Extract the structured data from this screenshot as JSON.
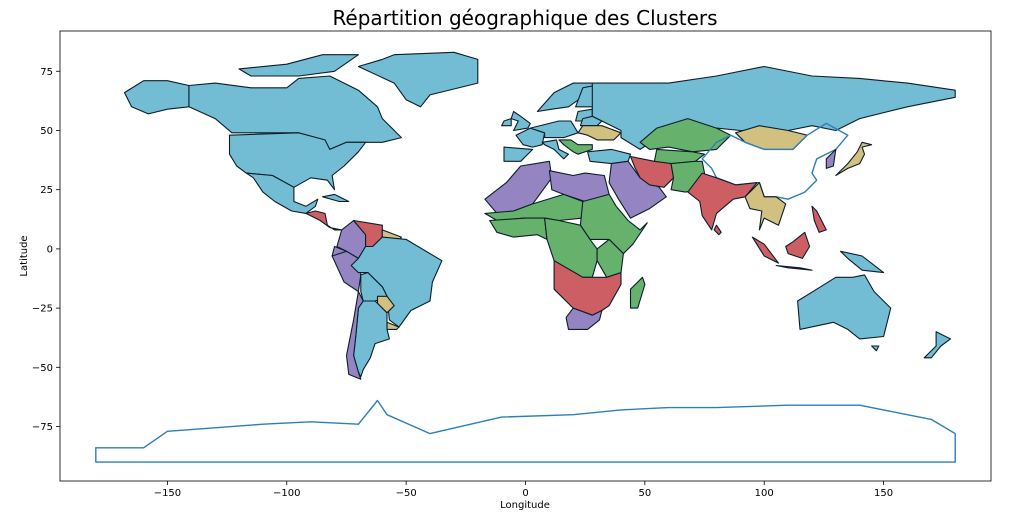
{
  "chart_data": {
    "type": "choropleth-map",
    "title": "Répartition géographique des Clusters",
    "xlabel": "Longitude",
    "ylabel": "Latitude",
    "xlim": [
      -195,
      195
    ],
    "ylim": [
      -98,
      92
    ],
    "x_ticks": [
      -150,
      -100,
      -50,
      0,
      50,
      100,
      150
    ],
    "x_tick_labels": [
      "−150",
      "−100",
      "−50",
      "0",
      "50",
      "100",
      "150"
    ],
    "y_ticks": [
      75,
      50,
      25,
      0,
      -25,
      -50,
      -75
    ],
    "y_tick_labels": [
      "75",
      "50",
      "25",
      "0",
      "−25",
      "−50",
      "−75"
    ],
    "grid": false,
    "legend": "none",
    "colors": {
      "cluster_blue": "#72bcd4",
      "cluster_purple": "#9584c2",
      "cluster_green": "#66b26c",
      "cluster_red": "#cd5e63",
      "cluster_tan": "#d1c07f",
      "no_data_outline": "#2e7fb8",
      "border": "#0b1e2a"
    }
  }
}
